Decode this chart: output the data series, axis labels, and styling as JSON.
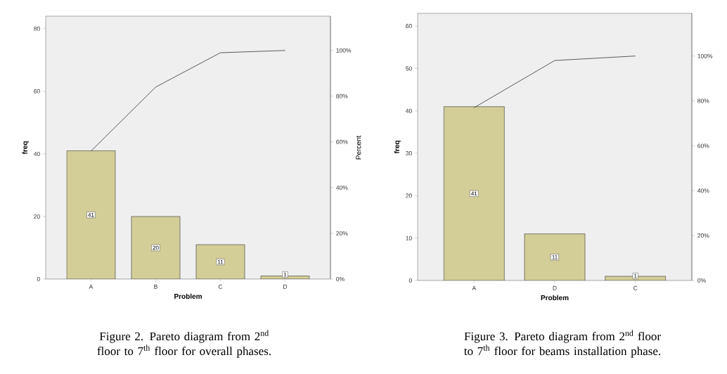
{
  "chart_data": [
    {
      "type": "bar",
      "categories": [
        "A",
        "B",
        "C",
        "D"
      ],
      "xlabel": "Problem",
      "ylabel": "freq",
      "y2label": "Percent",
      "ylim": [
        0,
        84
      ],
      "yticks": [
        0,
        20,
        40,
        60,
        80
      ],
      "y2lim": [
        0,
        115
      ],
      "y2ticks": [
        {
          "value": 0,
          "label": "0%"
        },
        {
          "value": 20,
          "label": "20%"
        },
        {
          "value": 40,
          "label": "40%"
        },
        {
          "value": 60,
          "label": "60%"
        },
        {
          "value": 80,
          "label": "80%"
        },
        {
          "value": 100,
          "label": "100%"
        }
      ],
      "series": [
        {
          "color": "#d3cd98",
          "values": [
            41,
            20,
            11,
            1
          ],
          "value_labels": [
            "41",
            "20",
            "11",
            "1"
          ]
        },
        {
          "type": "line",
          "axis": "y2",
          "color": "#333333",
          "values": [
            56,
            84,
            99,
            100
          ]
        }
      ],
      "grid": false,
      "annotations": [
        "Figure 2.  Pareto diagram from 2$^{nd}$ floor to 7$^{th}$ floor for overall phases."
      ]
    },
    {
      "type": "bar",
      "categories": [
        "A",
        "D",
        "C"
      ],
      "xlabel": "Problem",
      "ylabel": "freq",
      "ylim": [
        0,
        63
      ],
      "yticks": [
        0,
        10,
        20,
        30,
        40,
        50,
        60
      ],
      "y2lim": [
        0,
        119
      ],
      "y2ticks": [
        {
          "value": 0,
          "label": "0%"
        },
        {
          "value": 20,
          "label": "20%"
        },
        {
          "value": 40,
          "label": "40%"
        },
        {
          "value": 60,
          "label": "60%"
        },
        {
          "value": 80,
          "label": "80%"
        },
        {
          "value": 100,
          "label": "100%"
        }
      ],
      "series": [
        {
          "color": "#d3cd98",
          "values": [
            41,
            11,
            1
          ],
          "value_labels": [
            "41",
            "11",
            "1"
          ]
        },
        {
          "type": "line",
          "axis": "y2",
          "color": "#333333",
          "values": [
            77,
            98,
            100
          ]
        }
      ],
      "grid": false,
      "annotations": [
        "Figure 3.  Pareto diagram from 2$^{nd}$ floor to 7$^{th}$ floor for beams installation phase."
      ]
    }
  ]
}
